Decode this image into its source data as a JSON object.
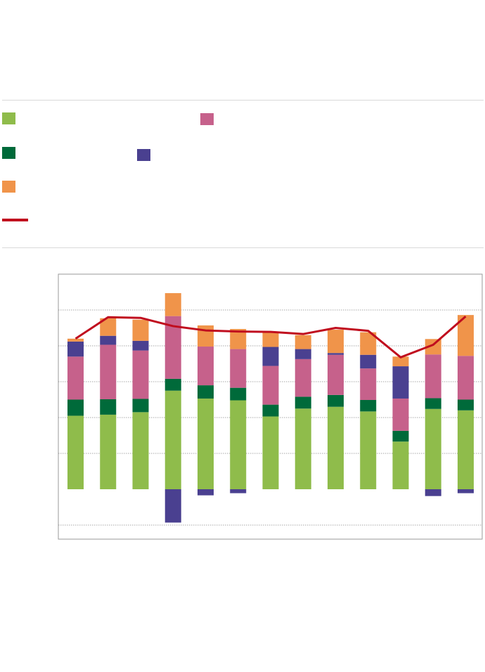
{
  "legend": {
    "items": [
      {
        "name": "",
        "color": "#8fbc4b",
        "shape": "square"
      },
      {
        "name": "",
        "color": "#c6618b",
        "shape": "square"
      },
      {
        "name": "",
        "color": "#006a3a",
        "shape": "square"
      },
      {
        "name": "",
        "color": "#4a4090",
        "shape": "square"
      },
      {
        "name": "",
        "color": "#f0944a",
        "shape": "square"
      },
      {
        "name": "",
        "color": "#c00d1e",
        "shape": "line"
      }
    ]
  },
  "chart_data": {
    "type": "bar",
    "stacked": true,
    "title": "",
    "xlabel": "",
    "ylabel": "",
    "categories": [
      "",
      "",
      "",
      "",
      "",
      "",
      "",
      "",
      "",
      "",
      "",
      "",
      ""
    ],
    "ylim": [
      -1,
      6
    ],
    "grid": true,
    "series": [
      {
        "color": "#8fbc4b",
        "values": [
          2.05,
          2.08,
          2.15,
          2.75,
          2.53,
          2.48,
          2.03,
          2.25,
          2.3,
          2.17,
          1.33,
          2.24,
          2.2
        ]
      },
      {
        "color": "#006a3a",
        "values": [
          0.45,
          0.43,
          0.37,
          0.33,
          0.37,
          0.35,
          0.33,
          0.33,
          0.33,
          0.32,
          0.3,
          0.3,
          0.3
        ]
      },
      {
        "color": "#c6618b",
        "values": [
          1.2,
          1.52,
          1.35,
          1.75,
          1.08,
          1.08,
          1.08,
          1.05,
          1.12,
          0.88,
          0.9,
          1.22,
          1.22
        ]
      },
      {
        "color": "#4a4090",
        "values": [
          0.42,
          0.25,
          0.27,
          -0.93,
          -0.17,
          -0.11,
          0.53,
          0.28,
          0.05,
          0.38,
          0.9,
          -0.19,
          -0.11
        ]
      },
      {
        "color": "#f0944a",
        "values": [
          0.08,
          0.49,
          0.59,
          0.64,
          0.59,
          0.56,
          0.4,
          0.39,
          0.65,
          0.63,
          0.27,
          0.43,
          1.14
        ]
      }
    ],
    "line": {
      "color": "#c00d1e",
      "values": [
        4.2,
        4.8,
        4.78,
        4.55,
        4.43,
        4.4,
        4.39,
        4.33,
        4.5,
        4.42,
        3.68,
        4.03,
        4.82
      ]
    }
  }
}
